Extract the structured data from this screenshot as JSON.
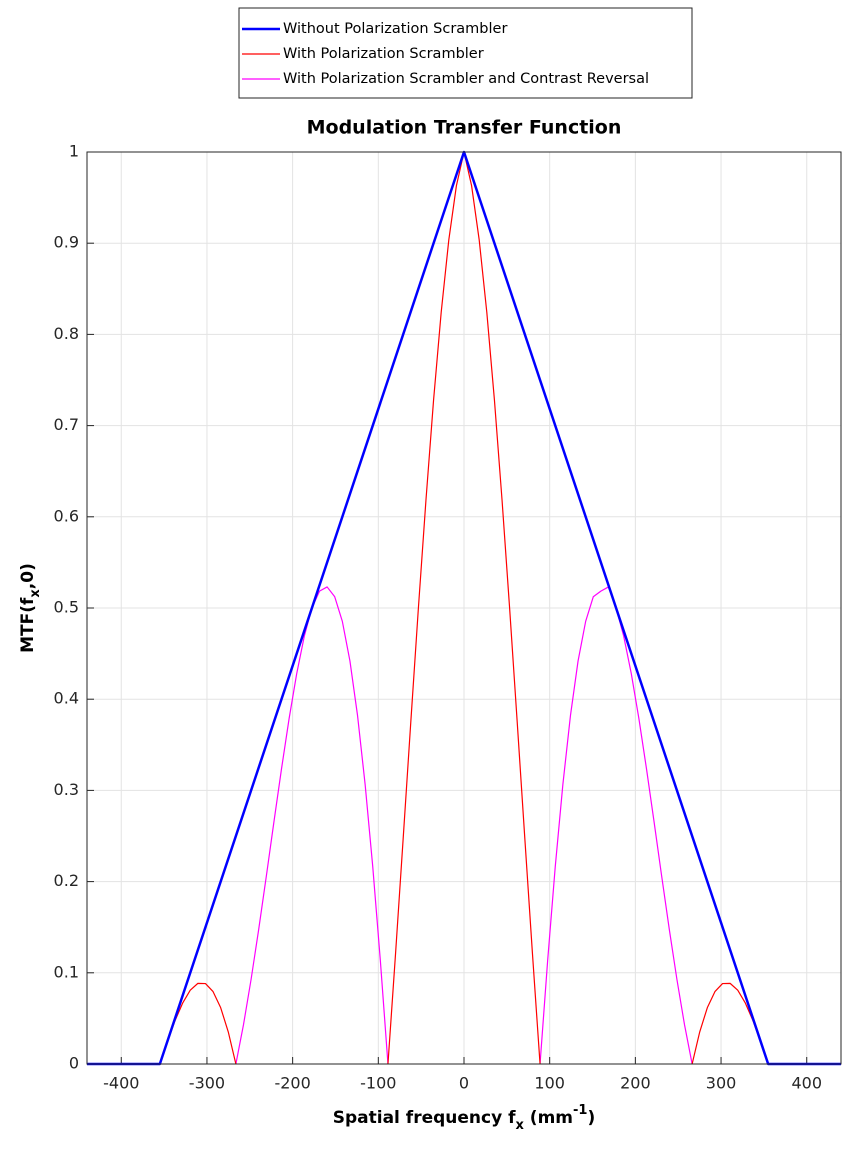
{
  "chart_data": {
    "type": "line",
    "title": "Modulation Transfer Function",
    "xlabel": [
      "Spatial frequency f",
      "x",
      " (mm",
      "-1",
      ")"
    ],
    "ylabel": [
      "MTF(f",
      "x",
      ",0)"
    ],
    "xlim": [
      -440,
      440
    ],
    "ylim": [
      0,
      1
    ],
    "xticks": [
      -400,
      -300,
      -200,
      -100,
      0,
      100,
      200,
      300,
      400
    ],
    "yticks": [
      0,
      0.1,
      0.2,
      0.3,
      0.4,
      0.5,
      0.6,
      0.7,
      0.8,
      0.9,
      1
    ],
    "grid": true,
    "legend": "top",
    "series": [
      {
        "name": "Without Polarization Scrambler",
        "color": "#0000ff",
        "x": [
          -440,
          -355,
          0,
          355,
          440
        ],
        "values": [
          0,
          0,
          1,
          0,
          0
        ]
      },
      {
        "name": "With Polarization Scrambler",
        "color": "#ff0000",
        "x": [
          -355,
          -346.125,
          -337.25,
          -328.375,
          -319.5,
          -310.625,
          -301.75,
          -292.875,
          -284,
          -275.125,
          -266.25,
          -257.375,
          -248.5,
          -239.625,
          -230.75,
          -221.875,
          -213,
          -204.125,
          -195.25,
          -186.375,
          -177.5,
          -168.625,
          -159.75,
          -150.875,
          -142,
          -133.125,
          -124.25,
          -115.375,
          -106.5,
          -97.625,
          -88.75,
          -79.875,
          -71,
          -62.125,
          -53.25,
          -44.375,
          -35.5,
          -26.625,
          -17.75,
          -8.875,
          0,
          8.875,
          17.75,
          26.625,
          35.5,
          44.375,
          53.25,
          62.125,
          71,
          79.875,
          88.75,
          97.625,
          106.5,
          115.375,
          124.25,
          133.125,
          142,
          150.875,
          159.75,
          168.625,
          177.5,
          186.375,
          195.25,
          204.125,
          213,
          221.875,
          230.75,
          239.625,
          248.5,
          257.375,
          266.25,
          275.125,
          284,
          292.875,
          301.75,
          310.625,
          319.5,
          328.375,
          337.25,
          346.125,
          355
        ],
        "values": [
          0,
          0.0247,
          0.0476,
          0.0668,
          0.0809,
          0.0884,
          0.0882,
          0.0794,
          0.0618,
          0.0352,
          0,
          null,
          null,
          null,
          null,
          null,
          null,
          null,
          null,
          null,
          null,
          null,
          null,
          null,
          null,
          null,
          null,
          null,
          null,
          null,
          0,
          0.1212,
          0.2472,
          0.3745,
          0.4996,
          0.6187,
          0.7281,
          0.8242,
          0.9035,
          0.963,
          1,
          0.963,
          0.9035,
          0.8242,
          0.7281,
          0.6187,
          0.4996,
          0.3745,
          0.2472,
          0.1212,
          0,
          null,
          null,
          null,
          null,
          null,
          null,
          null,
          null,
          null,
          null,
          null,
          null,
          null,
          null,
          null,
          null,
          null,
          null,
          null,
          0,
          0.0352,
          0.0618,
          0.0794,
          0.0882,
          0.0884,
          0.0809,
          0.0668,
          0.0476,
          0.0247,
          0
        ]
      },
      {
        "name": "With Polarization Scrambler and Contrast Reversal",
        "color": "#ff00ff",
        "x": [
          -355,
          -346.125,
          -337.25,
          -328.375,
          -319.5,
          -310.625,
          -301.75,
          -292.875,
          -284,
          -275.125,
          -266.25,
          -257.375,
          -248.5,
          -239.625,
          -230.75,
          -221.875,
          -213,
          -204.125,
          -195.25,
          -186.375,
          -177.5,
          -168.625,
          -159.75,
          -150.875,
          -142,
          -133.125,
          -124.25,
          -115.375,
          -106.5,
          -97.625,
          -88.75,
          -79.875,
          -71,
          -62.125,
          -53.25,
          -44.375,
          -35.5,
          -26.625,
          -17.75,
          -8.875,
          0,
          8.875,
          17.75,
          26.625,
          35.5,
          44.375,
          53.25,
          62.125,
          71,
          79.875,
          88.75,
          97.625,
          106.5,
          115.375,
          124.25,
          133.125,
          142,
          150.875,
          159.75,
          168.625,
          177.5,
          186.375,
          195.25,
          204.125,
          213,
          221.875,
          230.75,
          239.625,
          248.5,
          257.375,
          266.25,
          275.125,
          284,
          292.875,
          301.75,
          310.625,
          319.5,
          328.375,
          337.25,
          346.125,
          355
        ],
        "values": [
          null,
          null,
          null,
          null,
          null,
          null,
          null,
          null,
          null,
          null,
          0,
          0.043,
          0.0927,
          0.1475,
          0.2057,
          0.2652,
          0.3236,
          0.3787,
          0.428,
          0.4692,
          0.5,
          0.5185,
          0.5231,
          0.5123,
          0.4854,
          0.4419,
          0.3821,
          0.3064,
          0.2163,
          0.1134,
          0,
          null,
          null,
          null,
          null,
          null,
          null,
          null,
          null,
          null,
          null,
          null,
          null,
          null,
          null,
          null,
          null,
          null,
          null,
          null,
          0,
          0.1134,
          0.2163,
          0.3064,
          0.3821,
          0.4419,
          0.4854,
          0.5123,
          0.5185,
          0.5231,
          0.5,
          0.4692,
          0.428,
          0.3787,
          0.3236,
          0.2652,
          0.2057,
          0.1475,
          0.0927,
          0.043,
          0,
          null,
          null,
          null,
          null,
          null,
          null,
          null,
          null,
          null,
          null
        ]
      }
    ]
  }
}
